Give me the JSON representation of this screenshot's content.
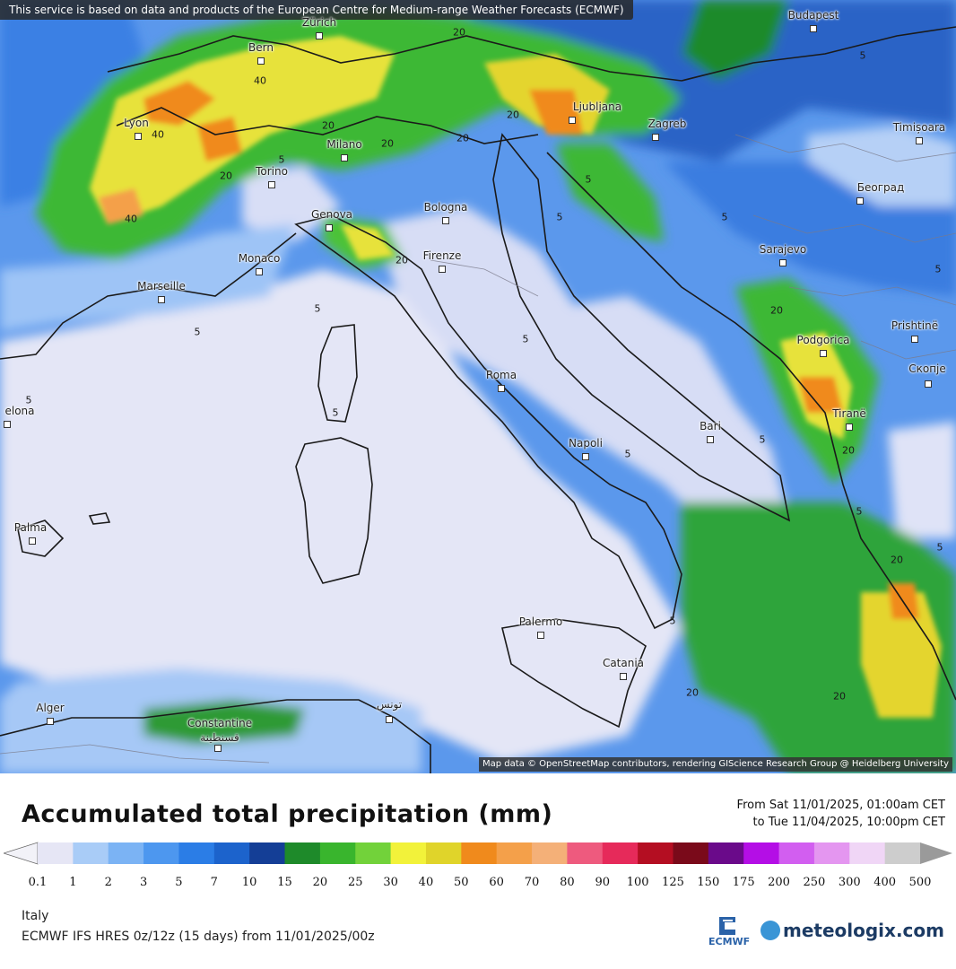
{
  "header": {
    "banner": "This service is based on data and products of the European Centre for Medium-range Weather Forecasts (ECMWF)"
  },
  "map": {
    "attribution": "Map data © OpenStreetMap contributors, rendering GIScience Research Group @ Heidelberg University",
    "cities": [
      {
        "id": "budapest",
        "name": "Budapest"
      },
      {
        "id": "zurich",
        "name": "Zürich"
      },
      {
        "id": "bern",
        "name": "Bern"
      },
      {
        "id": "lyon",
        "name": "Lyon"
      },
      {
        "id": "milano",
        "name": "Milano"
      },
      {
        "id": "torino",
        "name": "Torino"
      },
      {
        "id": "genova",
        "name": "Genova"
      },
      {
        "id": "bologna",
        "name": "Bologna"
      },
      {
        "id": "firenze",
        "name": "Firenze"
      },
      {
        "id": "monaco",
        "name": "Monaco"
      },
      {
        "id": "marseille",
        "name": "Marseille"
      },
      {
        "id": "ljubljana",
        "name": "Ljubljana"
      },
      {
        "id": "zagreb",
        "name": "Zagreb"
      },
      {
        "id": "timisoara",
        "name": "Timișoara"
      },
      {
        "id": "beograd",
        "name": "Београд"
      },
      {
        "id": "sarajevo",
        "name": "Sarajevo"
      },
      {
        "id": "podgorica",
        "name": "Podgorica"
      },
      {
        "id": "prishtine",
        "name": "Prishtinë"
      },
      {
        "id": "skopje",
        "name": "Скопје"
      },
      {
        "id": "tirane",
        "name": "Tiranë"
      },
      {
        "id": "roma",
        "name": "Roma"
      },
      {
        "id": "napoli",
        "name": "Napoli"
      },
      {
        "id": "bari",
        "name": "Bari"
      },
      {
        "id": "palermo",
        "name": "Palermo"
      },
      {
        "id": "catania",
        "name": "Catania"
      },
      {
        "id": "palma",
        "name": "Palma"
      },
      {
        "id": "elona",
        "name": "elona"
      },
      {
        "id": "alger",
        "name": "Alger"
      },
      {
        "id": "constantine",
        "name": "Constantine"
      },
      {
        "id": "constantine_ar",
        "name": "قسنطينة"
      },
      {
        "id": "tunis_ar",
        "name": "تونس"
      }
    ],
    "contour_labels": [
      "40",
      "40",
      "40",
      "20",
      "20",
      "20",
      "20",
      "20",
      "20",
      "20",
      "5",
      "5",
      "5",
      "5",
      "5",
      "5",
      "5",
      "5",
      "5",
      "5",
      "5",
      "5",
      "5",
      "5",
      "20",
      "20",
      "20",
      "20",
      "20",
      "5",
      "5"
    ]
  },
  "legend": {
    "title": "Accumulated total precipitation (mm)",
    "range_from": "From Sat 11/01/2025, 01:00am CET",
    "range_to": "to Tue 11/04/2025, 10:00pm CET",
    "ticks": [
      "0.1",
      "1",
      "2",
      "3",
      "5",
      "7",
      "10",
      "15",
      "20",
      "25",
      "30",
      "40",
      "50",
      "60",
      "70",
      "80",
      "90",
      "100",
      "125",
      "150",
      "175",
      "200",
      "250",
      "300",
      "400",
      "500"
    ],
    "colors": [
      "#e6e6f5",
      "#a9ccf7",
      "#7bb3f4",
      "#4d97ef",
      "#2b7de6",
      "#1c63cc",
      "#143e96",
      "#1e8a2a",
      "#39b52d",
      "#72d23a",
      "#f2f23a",
      "#e0d42a",
      "#f08a1c",
      "#f4a04a",
      "#f4b078",
      "#ee5a7e",
      "#e62a5a",
      "#b40e22",
      "#7a0a1a",
      "#6a0a8a",
      "#b40ee6",
      "#d25ef0",
      "#e496f0",
      "#f0d6f6",
      "#cdcdcd"
    ],
    "region": "Italy",
    "model": "ECMWF IFS HRES 0z/12z (15 days) from 11/01/2025/00z"
  },
  "brands": {
    "ecmwf": "ECMWF",
    "meteologix": "meteologix.com"
  }
}
